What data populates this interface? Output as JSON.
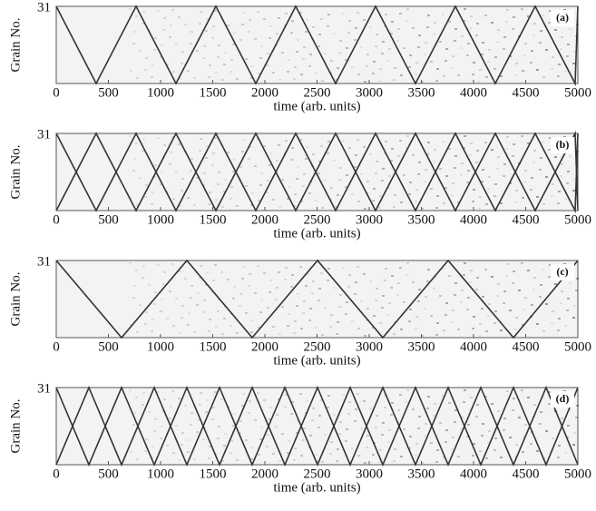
{
  "chart_data": [
    {
      "type": "heatmap",
      "annotation": "(a)",
      "xlabel": "time (arb. units)",
      "ylabel": "Grain No.",
      "xlim": [
        0,
        5000
      ],
      "xticks": [
        0,
        500,
        1000,
        1500,
        2000,
        2500,
        3000,
        3500,
        4000,
        4500,
        5000
      ],
      "ylim": [
        1,
        31
      ],
      "yticks": [
        31
      ]
    },
    {
      "type": "heatmap",
      "annotation": "(b)",
      "xlabel": "time (arb. units)",
      "ylabel": "Grain No.",
      "xlim": [
        0,
        5000
      ],
      "xticks": [
        0,
        500,
        1000,
        1500,
        2000,
        2500,
        3000,
        3500,
        4000,
        4500,
        5000
      ],
      "ylim": [
        1,
        31
      ],
      "yticks": [
        31
      ]
    },
    {
      "type": "heatmap",
      "annotation": "(c)",
      "xlabel": "time (arb. units)",
      "ylabel": "Grain No.",
      "xlim": [
        0,
        5000
      ],
      "xticks": [
        0,
        500,
        1000,
        1500,
        2000,
        2500,
        3000,
        3500,
        4000,
        4500,
        5000
      ],
      "ylim": [
        1,
        31
      ],
      "yticks": [
        31
      ]
    },
    {
      "type": "heatmap",
      "annotation": "(d)",
      "xlabel": "time (arb. units)",
      "ylabel": "Grain No.",
      "xlim": [
        0,
        5000
      ],
      "xticks": [
        0,
        500,
        1000,
        1500,
        2000,
        2500,
        3000,
        3500,
        4000,
        4500,
        5000
      ],
      "ylim": [
        1,
        31
      ],
      "yticks": [
        31
      ]
    }
  ]
}
